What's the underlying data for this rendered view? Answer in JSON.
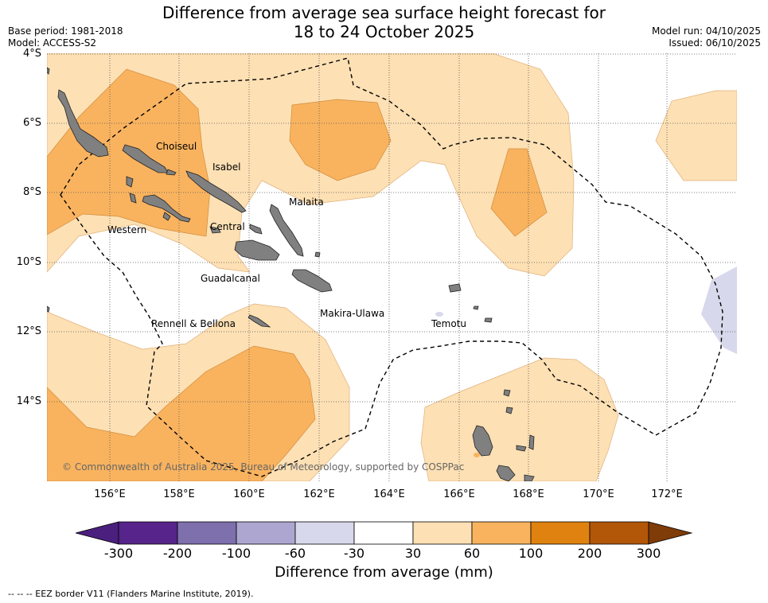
{
  "title_line1": "Difference from average sea surface height forecast for",
  "title_line2": "18 to 24 October 2025",
  "base_period": "Base period: 1981-2018",
  "model": "Model: ACCESS-S2",
  "model_run": "Model run: 04/10/2025",
  "issued": "Issued: 06/10/2025",
  "lat_labels": [
    "4°S",
    "6°S",
    "8°S",
    "10°S",
    "12°S",
    "14°S"
  ],
  "lon_labels": [
    "156°E",
    "158°E",
    "160°E",
    "162°E",
    "164°E",
    "166°E",
    "168°E",
    "170°E",
    "172°E"
  ],
  "regions": [
    "Choiseul",
    "Isabel",
    "Malaita",
    "Western",
    "Central",
    "Guadalcanal",
    "Makira-Ulawa",
    "Rennell & Bellona",
    "Temotu"
  ],
  "copyright": "© Commonwealth of Australia 2025, Bureau of Meteorology, supported by COSPPac",
  "colorbar": {
    "ticks": [
      "-300",
      "-200",
      "-100",
      "-60",
      "-30",
      "30",
      "60",
      "100",
      "200",
      "300"
    ],
    "colors": [
      "#4b1f7e",
      "#56248a",
      "#7e6fad",
      "#aca6d0",
      "#d8d8ec",
      "#ffffff",
      "#fde0b4",
      "#f9b35f",
      "#e0820f",
      "#b25608",
      "#7f3b08"
    ],
    "label": "Difference from average (mm)"
  },
  "legend_note": "--  --  -- EEZ border V11 (Flanders Marine Institute, 2019)."
}
